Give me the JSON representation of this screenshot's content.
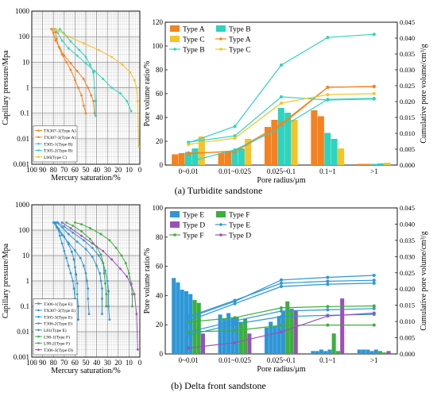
{
  "colors": {
    "orange": "#f5821f",
    "teal": "#2dd4bf",
    "yellow": "#f7c325",
    "blue": "#2e97d6",
    "green": "#3caf3c",
    "purple": "#9b4fba"
  },
  "captions": {
    "a": "(a) Turbidite sandstone",
    "b": "(b) Delta front sandstone"
  },
  "chart_data": [
    {
      "id": "a-cap",
      "type": "line",
      "title": "",
      "xlabel": "Mercury saturation/%",
      "ylabel": "Capillary pressure/Mpa",
      "x_reversed": true,
      "y_scale": "log",
      "xlim": [
        0,
        100
      ],
      "ylim": [
        0.001,
        1000
      ],
      "x_ticks": [
        "100",
        "90",
        "80",
        "70",
        "60",
        "50",
        "40",
        "30",
        "20",
        "10",
        "0"
      ],
      "y_ticks": [
        "1000",
        "100",
        "10",
        "1",
        "0.1",
        "0.01",
        "0.001"
      ],
      "legend": "bottom-left",
      "series": [
        {
          "name": "TX307-1(Type A)",
          "color": "#f5821f",
          "points": [
            [
              80,
              200
            ],
            [
              78,
              150
            ],
            [
              77,
              80
            ],
            [
              75,
              40
            ],
            [
              72,
              20
            ],
            [
              68,
              10
            ],
            [
              64,
              5
            ],
            [
              60,
              2
            ],
            [
              57,
              1
            ],
            [
              54,
              0.5
            ],
            [
              52,
              0.2
            ],
            [
              50,
              0.1
            ]
          ]
        },
        {
          "name": "TX307-3(Type A)",
          "color": "#f5821f",
          "points": [
            [
              82,
              200
            ],
            [
              80,
              140
            ],
            [
              78,
              70
            ],
            [
              74,
              35
            ],
            [
              70,
              18
            ],
            [
              64,
              9
            ],
            [
              58,
              4.5
            ],
            [
              52,
              2.2
            ],
            [
              48,
              1
            ],
            [
              45,
              0.5
            ],
            [
              43,
              0.3
            ],
            [
              42,
              0.1
            ]
          ]
        },
        {
          "name": "T305-1(Type B)",
          "color": "#2dd4bf",
          "points": [
            [
              78,
              200
            ],
            [
              76,
              140
            ],
            [
              72,
              70
            ],
            [
              66,
              35
            ],
            [
              58,
              18
            ],
            [
              50,
              9
            ],
            [
              42,
              4.5
            ],
            [
              34,
              2.2
            ],
            [
              26,
              1
            ],
            [
              18,
              0.6
            ],
            [
              12,
              0.3
            ],
            [
              8,
              0.12
            ]
          ]
        },
        {
          "name": "T305-2(Type B)",
          "color": "#2dd4bf",
          "points": [
            [
              74,
              200
            ],
            [
              70,
              130
            ],
            [
              64,
              65
            ],
            [
              56,
              30
            ],
            [
              50,
              16
            ],
            [
              46,
              8
            ],
            [
              43,
              4
            ],
            [
              42,
              1
            ],
            [
              41,
              0.3
            ],
            [
              41,
              0.08
            ]
          ]
        },
        {
          "name": "L66(Type C)",
          "color": "#f7c325",
          "points": [
            [
              79,
              200
            ],
            [
              75,
              170
            ],
            [
              66,
              100
            ],
            [
              52,
              55
            ],
            [
              38,
              30
            ],
            [
              26,
              16
            ],
            [
              16,
              8
            ],
            [
              9,
              4
            ],
            [
              5,
              2
            ],
            [
              3,
              1
            ],
            [
              2,
              0.3
            ],
            [
              1,
              0.005
            ]
          ]
        }
      ]
    },
    {
      "id": "a-dist",
      "type": "bar",
      "title": "",
      "xlabel": "Pore radius/μm",
      "ylabel": "Pore volume ratio/%",
      "y2label": "Cumulative pore volume/cm³/g",
      "categories": [
        "0~0.01",
        "0.01~0.025",
        "0.025~0.1",
        "0.1~1",
        ">1"
      ],
      "ylim": [
        0,
        120
      ],
      "y_ticks": [
        "0",
        "20",
        "40",
        "60",
        "80",
        "100",
        "120"
      ],
      "y2lim": [
        0,
        0.045
      ],
      "y2_ticks": [
        "0.000",
        "0.005",
        "0.010",
        "0.015",
        "0.020",
        "0.025",
        "0.030",
        "0.035",
        "0.040",
        "0.045"
      ],
      "legend": "top-left",
      "bar_series": [
        {
          "name": "Type A",
          "color": "#f5821f",
          "values": [
            [
              9,
              10
            ],
            [
              10,
              11
            ],
            [
              32,
              38
            ],
            [
              46,
              41
            ],
            [
              1,
              1
            ]
          ]
        },
        {
          "name": "Type B",
          "color": "#2dd4bf",
          "values": [
            [
              11,
              14
            ],
            [
              12,
              14
            ],
            [
              48,
              44
            ],
            [
              27,
              22
            ],
            [
              1,
              1.5
            ]
          ]
        },
        {
          "name": "Type C",
          "color": "#f7c325",
          "values": [
            [
              24
            ],
            [
              22
            ],
            [
              38
            ],
            [
              14
            ],
            [
              2
            ]
          ]
        }
      ],
      "line_series": [
        {
          "name": "Type A",
          "color": "#f5821f",
          "values": [
            [
              0.0035,
              0.0045,
              0.013,
              0.0245,
              0.0247
            ],
            [
              0.0038,
              0.0042,
              0.0125,
              0.0245,
              0.0248
            ]
          ]
        },
        {
          "name": "Type B",
          "color": "#2dd4bf",
          "values": [
            [
              0.0072,
              0.0092,
              0.0215,
              0.0205,
              0.0208
            ],
            [
              0.001,
              0.0048,
              0.0118,
              0.0207,
              0.021
            ],
            [
              0.007,
              0.0122,
              0.0315,
              0.0402,
              0.0412
            ]
          ]
        },
        {
          "name": "Type C",
          "color": "#f7c325",
          "values": [
            [
              0.0065,
              0.0085,
              0.0195,
              0.0222,
              0.0225
            ]
          ]
        }
      ]
    },
    {
      "id": "b-cap",
      "type": "line",
      "title": "",
      "xlabel": "Mercury saturation/%",
      "ylabel": "Capillary pressure/Mpa",
      "x_reversed": true,
      "y_scale": "log",
      "xlim": [
        0,
        100
      ],
      "ylim": [
        0.001,
        1000
      ],
      "x_ticks": [
        "100",
        "90",
        "80",
        "70",
        "60",
        "50",
        "40",
        "30",
        "20",
        "10",
        "0"
      ],
      "y_ticks": [
        "1000",
        "100",
        "10",
        "1",
        "0.1",
        "0.01",
        "0.001"
      ],
      "legend": "bottom-left",
      "series": [
        {
          "name": "T306-1(Type E)",
          "color": "#2e97d6",
          "points": [
            [
              78,
              200
            ],
            [
              76,
              120
            ],
            [
              74,
              60
            ],
            [
              72,
              30
            ],
            [
              70,
              15
            ],
            [
              68,
              8
            ],
            [
              66,
              4
            ],
            [
              64,
              2
            ],
            [
              62,
              1
            ],
            [
              61,
              0.5
            ],
            [
              60,
              0.2
            ],
            [
              59,
              0.05
            ]
          ]
        },
        {
          "name": "TX307-3(Type E)",
          "color": "#2e97d6",
          "points": [
            [
              80,
              200
            ],
            [
              77,
              130
            ],
            [
              72,
              65
            ],
            [
              66,
              32
            ],
            [
              60,
              16
            ],
            [
              55,
              8
            ],
            [
              52,
              4
            ],
            [
              50,
              2
            ],
            [
              49,
              1
            ],
            [
              48,
              0.5
            ],
            [
              48,
              0.2
            ],
            [
              47,
              0.05
            ]
          ]
        },
        {
          "name": "T305-3(Type E)",
          "color": "#2e97d6",
          "points": [
            [
              76,
              200
            ],
            [
              70,
              140
            ],
            [
              62,
              80
            ],
            [
              52,
              40
            ],
            [
              44,
              20
            ],
            [
              38,
              10
            ],
            [
              34,
              5
            ],
            [
              32,
              2.5
            ],
            [
              30,
              1
            ],
            [
              29,
              0.4
            ],
            [
              29,
              0.1
            ],
            [
              28,
              0.03
            ]
          ]
        },
        {
          "name": "T306-2(Type E)",
          "color": "#2e97d6",
          "points": [
            [
              77,
              200
            ],
            [
              72,
              130
            ],
            [
              66,
              70
            ],
            [
              58,
              35
            ],
            [
              50,
              18
            ],
            [
              44,
              9
            ],
            [
              40,
              4
            ],
            [
              37,
              2
            ],
            [
              36,
              1
            ],
            [
              35,
              0.5
            ],
            [
              35,
              0.2
            ],
            [
              35,
              0.05
            ]
          ]
        },
        {
          "name": "L81(Type E)",
          "color": "#2e97d6",
          "points": [
            [
              79,
              200
            ],
            [
              75,
              110
            ],
            [
              70,
              55
            ],
            [
              66,
              28
            ],
            [
              63,
              14
            ],
            [
              61,
              7
            ],
            [
              60,
              3.5
            ],
            [
              59,
              1.8
            ],
            [
              58,
              0.8
            ],
            [
              58,
              0.3
            ],
            [
              57,
              0.1
            ],
            [
              57,
              0.03
            ]
          ]
        },
        {
          "name": "L98-1(Type F)",
          "color": "#3caf3c",
          "points": [
            [
              60,
              200
            ],
            [
              54,
              170
            ],
            [
              46,
              120
            ],
            [
              36,
              70
            ],
            [
              28,
              40
            ],
            [
              22,
              20
            ],
            [
              17,
              10
            ],
            [
              13,
              5
            ],
            [
              10,
              2
            ],
            [
              8,
              0.8
            ],
            [
              7,
              0.3
            ],
            [
              7,
              0.1
            ]
          ]
        },
        {
          "name": "L98-2(Type F)",
          "color": "#3caf3c",
          "points": [
            [
              68,
              200
            ],
            [
              62,
              150
            ],
            [
              54,
              90
            ],
            [
              46,
              45
            ],
            [
              40,
              22
            ],
            [
              36,
              11
            ],
            [
              34,
              5
            ],
            [
              33,
              2
            ],
            [
              32,
              0.8
            ],
            [
              31,
              0.3
            ],
            [
              31,
              0.1
            ]
          ]
        },
        {
          "name": "T306-3(Type D)",
          "color": "#9b4fba",
          "points": [
            [
              72,
              200
            ],
            [
              64,
              120
            ],
            [
              54,
              60
            ],
            [
              44,
              30
            ],
            [
              34,
              15
            ],
            [
              26,
              7
            ],
            [
              18,
              3
            ],
            [
              12,
              1.5
            ],
            [
              8,
              0.7
            ],
            [
              5,
              0.3
            ],
            [
              3,
              0.05
            ],
            [
              2,
              0.002
            ]
          ]
        }
      ]
    },
    {
      "id": "b-dist",
      "type": "bar",
      "title": "",
      "xlabel": "Pore radius/μm",
      "ylabel": "Pore volume ratio/%",
      "y2label": "Cumulative pore volume/cm³/g",
      "categories": [
        "0~0.01",
        "0.01~0.025",
        "0.025~0.1",
        "0.1~1",
        ">1"
      ],
      "ylim": [
        0,
        100
      ],
      "y_ticks": [
        "0",
        "20",
        "40",
        "60",
        "80",
        "100"
      ],
      "y2lim": [
        0,
        0.045
      ],
      "y2_ticks": [
        "0.000",
        "0.005",
        "0.010",
        "0.015",
        "0.020",
        "0.025",
        "0.030",
        "0.035",
        "0.040",
        "0.045"
      ],
      "legend": "top-left",
      "bar_series": [
        {
          "name": "Type E",
          "color": "#2e97d6",
          "values": [
            [
              52,
              49,
              44,
              43,
              41
            ],
            [
              27,
              24,
              28,
              25,
              25
            ],
            [
              18,
              22,
              19,
              26,
              29
            ],
            [
              2,
              2,
              3,
              2,
              3
            ],
            [
              3,
              3,
              3,
              2,
              3
            ]
          ]
        },
        {
          "name": "Type F",
          "color": "#3caf3c",
          "values": [
            [
              37,
              35
            ],
            [
              22,
              24
            ],
            [
              36,
              31
            ],
            [
              14,
              2
            ],
            [
              2,
              1
            ]
          ]
        },
        {
          "name": "Type D",
          "color": "#9b4fba",
          "values": [
            [
              14
            ],
            [
              14
            ],
            [
              30
            ],
            [
              38
            ],
            [
              2
            ]
          ]
        }
      ],
      "line_series": [
        {
          "name": "Type E",
          "color": "#2e97d6",
          "values": [
            [
              0.0115,
              0.0165,
              0.0218,
              0.0224,
              0.0227
            ],
            [
              0.0102,
              0.0155,
              0.0208,
              0.0215,
              0.0218
            ],
            [
              0.0112,
              0.0162,
              0.0228,
              0.0236,
              0.0242
            ],
            [
              0.0058,
              0.0092,
              0.0115,
              0.0119,
              0.0122
            ],
            [
              0.0068,
              0.0102,
              0.0132,
              0.0136,
              0.014
            ]
          ]
        },
        {
          "name": "Type F",
          "color": "#3caf3c",
          "values": [
            [
              0.0098,
              0.0112,
              0.0142,
              0.0146,
              0.0148
            ],
            [
              0.0068,
              0.0072,
              0.0088,
              0.0089,
              0.0089
            ]
          ]
        },
        {
          "name": "Type D",
          "color": "#9b4fba",
          "values": [
            [
              0.0018,
              0.0035,
              0.0068,
              0.0117,
              0.0126
            ]
          ]
        }
      ]
    }
  ]
}
